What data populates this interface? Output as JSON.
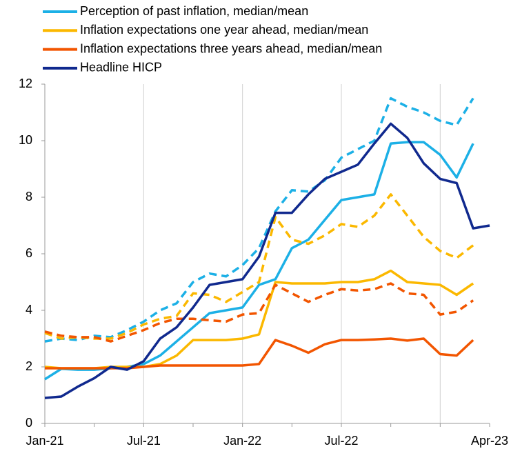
{
  "chart_data": {
    "type": "line",
    "categories": [
      "Jan-21",
      null,
      null,
      null,
      null,
      null,
      "Jul-21",
      null,
      null,
      null,
      null,
      null,
      "Jan-22",
      null,
      null,
      null,
      null,
      null,
      "Jul-22",
      null,
      null,
      null,
      null,
      null,
      null,
      null,
      null,
      "Apr-23"
    ],
    "series": [
      {
        "name": "Perception of past inflation, median/mean",
        "color": "#1cb0e6",
        "values": [
          1.56,
          1.93,
          1.9,
          1.9,
          1.95,
          2.0,
          2.1,
          2.4,
          2.9,
          3.4,
          3.9,
          4.0,
          4.1,
          4.9,
          5.1,
          6.2,
          6.5,
          7.2,
          7.9,
          8.0,
          8.1,
          9.9,
          9.95,
          9.95,
          9.5,
          8.7,
          9.9,
          null
        ],
        "mean": [
          2.9,
          3.0,
          2.95,
          3.1,
          3.05,
          3.3,
          3.6,
          4.0,
          4.25,
          5.0,
          5.3,
          5.2,
          5.6,
          6.2,
          7.5,
          8.25,
          8.2,
          8.6,
          9.4,
          9.7,
          10.0,
          11.5,
          11.2,
          11.0,
          10.7,
          10.55,
          11.5,
          null
        ]
      },
      {
        "name": "Inflation expectations one year ahead, median/mean",
        "color": "#fbb800",
        "values": [
          2.0,
          1.95,
          1.95,
          1.95,
          2.0,
          2.0,
          2.0,
          2.1,
          2.4,
          2.95,
          2.95,
          2.95,
          3.0,
          3.15,
          5.0,
          4.95,
          4.95,
          4.95,
          5.0,
          5.0,
          5.1,
          5.4,
          5.0,
          4.95,
          4.9,
          4.55,
          4.95,
          null
        ],
        "mean": [
          3.2,
          3.0,
          3.05,
          3.0,
          3.0,
          3.2,
          3.5,
          3.7,
          3.8,
          4.6,
          4.55,
          4.3,
          4.65,
          5.0,
          7.3,
          6.5,
          6.35,
          6.65,
          7.05,
          6.95,
          7.35,
          8.1,
          7.35,
          6.6,
          6.1,
          5.85,
          6.3,
          null
        ]
      },
      {
        "name": "Inflation expectations three years ahead, median/mean",
        "color": "#f25500",
        "values": [
          1.95,
          1.95,
          1.95,
          1.95,
          1.95,
          1.95,
          2.0,
          2.05,
          2.05,
          2.05,
          2.05,
          2.05,
          2.05,
          2.1,
          2.95,
          2.75,
          2.5,
          2.8,
          2.95,
          2.95,
          2.97,
          3.0,
          2.93,
          3.0,
          2.45,
          2.4,
          2.95,
          null
        ],
        "mean": [
          3.25,
          3.1,
          3.05,
          3.05,
          2.9,
          3.1,
          3.3,
          3.55,
          3.7,
          3.7,
          3.65,
          3.6,
          3.85,
          3.9,
          4.9,
          4.6,
          4.3,
          4.55,
          4.75,
          4.7,
          4.75,
          4.95,
          4.6,
          4.55,
          3.85,
          3.95,
          4.35,
          null
        ]
      },
      {
        "name": "Headline HICP",
        "color": "#10298e",
        "values": [
          0.9,
          0.95,
          1.3,
          1.6,
          2.0,
          1.9,
          2.2,
          3.0,
          3.4,
          4.1,
          4.9,
          5.0,
          5.1,
          5.9,
          7.45,
          7.45,
          8.1,
          8.65,
          8.9,
          9.15,
          9.9,
          10.6,
          10.1,
          9.2,
          8.65,
          8.5,
          6.9,
          7.0
        ]
      }
    ],
    "ylim": [
      0,
      12
    ],
    "yticks": [
      0,
      2,
      4,
      6,
      8,
      10,
      12
    ],
    "xgrid": true,
    "legend": "top-left"
  }
}
